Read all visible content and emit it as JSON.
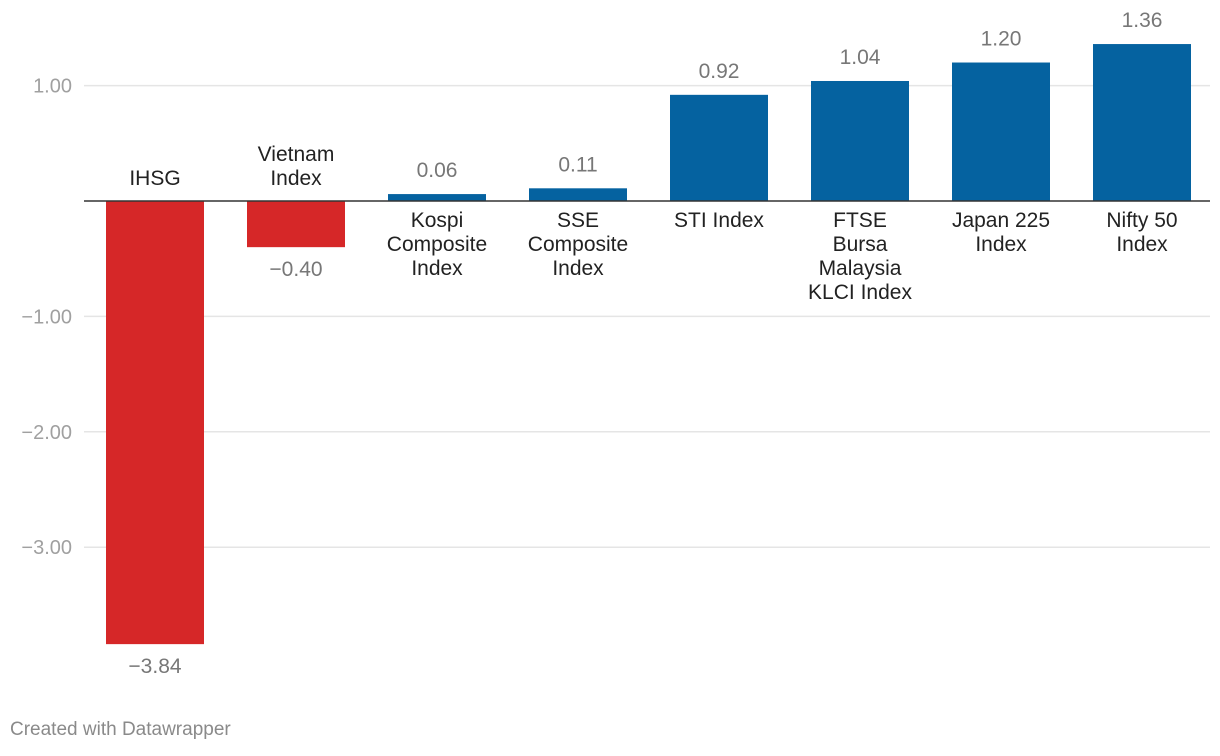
{
  "chart_data": {
    "type": "bar",
    "categories": [
      [
        "IHSG"
      ],
      [
        "Vietnam",
        "Index"
      ],
      [
        "Kospi",
        "Composite",
        "Index"
      ],
      [
        "SSE",
        "Composite",
        "Index"
      ],
      [
        "STI Index"
      ],
      [
        "FTSE",
        "Bursa",
        "Malaysia",
        "KLCI Index"
      ],
      [
        "Japan 225",
        "Index"
      ],
      [
        "Nifty 50",
        "Index"
      ]
    ],
    "values": [
      -3.84,
      -0.4,
      0.06,
      0.11,
      0.92,
      1.04,
      1.2,
      1.36
    ],
    "value_labels": [
      "−3.84",
      "−0.40",
      "0.06",
      "0.11",
      "0.92",
      "1.04",
      "1.20",
      "1.36"
    ],
    "ylim": [
      -3.84,
      1.36
    ],
    "y_ticks": [
      1,
      -1,
      -2,
      -3
    ],
    "y_tick_labels": [
      "1.00",
      "−1.00",
      "−2.00",
      "−3.00"
    ],
    "grid": true,
    "colors": {
      "positive": "#0562a0",
      "negative": "#d62728"
    },
    "title": "",
    "xlabel": "",
    "ylabel": ""
  },
  "footer": "Created with Datawrapper"
}
